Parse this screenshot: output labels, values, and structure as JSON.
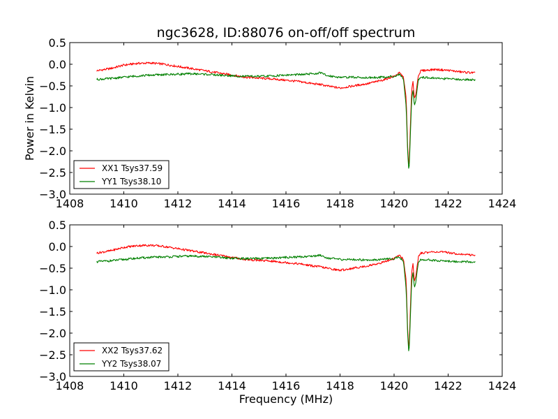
{
  "figure": {
    "title": "ngc3628, ID:88076 on-off/off spectrum"
  },
  "chart_data": [
    {
      "type": "line",
      "title": "ngc3628, ID:88076 on-off/off spectrum",
      "xlabel": "",
      "ylabel": "Power in Kelvin",
      "xlim": [
        1408,
        1424
      ],
      "ylim": [
        -3.0,
        0.5
      ],
      "xticks": [
        "1408",
        "1410",
        "1412",
        "1414",
        "1416",
        "1418",
        "1420",
        "1422",
        "1424"
      ],
      "yticks": [
        "0.5",
        "0.0",
        "−0.5",
        "−1.0",
        "−1.5",
        "−2.0",
        "−2.5",
        "−3.0"
      ],
      "grid": false,
      "legend_position": "lower-left",
      "x": [
        1409.0,
        1409.5,
        1410.0,
        1410.5,
        1411.0,
        1411.5,
        1412.0,
        1412.5,
        1413.0,
        1413.5,
        1414.0,
        1414.5,
        1415.0,
        1415.5,
        1416.0,
        1416.5,
        1417.0,
        1417.3,
        1417.5,
        1418.0,
        1418.5,
        1419.0,
        1419.5,
        1420.0,
        1420.2,
        1420.35,
        1420.45,
        1420.5,
        1420.55,
        1420.6,
        1420.65,
        1420.7,
        1420.75,
        1420.8,
        1420.9,
        1421.0,
        1421.5,
        1422.0,
        1422.5,
        1423.0
      ],
      "series": [
        {
          "name": "XX1 Tsys37.59",
          "color": "#ff0000",
          "values": [
            -0.15,
            -0.1,
            -0.02,
            0.02,
            0.03,
            0.0,
            -0.05,
            -0.1,
            -0.15,
            -0.2,
            -0.25,
            -0.3,
            -0.32,
            -0.34,
            -0.37,
            -0.4,
            -0.45,
            -0.47,
            -0.5,
            -0.55,
            -0.5,
            -0.45,
            -0.38,
            -0.28,
            -0.2,
            -0.3,
            -0.8,
            -1.9,
            -2.4,
            -1.5,
            -0.6,
            -0.4,
            -0.8,
            -0.7,
            -0.25,
            -0.15,
            -0.12,
            -0.14,
            -0.18,
            -0.2
          ]
        },
        {
          "name": "YY1 Tsys38.10",
          "color": "#008000",
          "values": [
            -0.35,
            -0.33,
            -0.3,
            -0.27,
            -0.25,
            -0.24,
            -0.23,
            -0.22,
            -0.23,
            -0.25,
            -0.27,
            -0.28,
            -0.28,
            -0.27,
            -0.25,
            -0.24,
            -0.22,
            -0.2,
            -0.26,
            -0.3,
            -0.3,
            -0.31,
            -0.3,
            -0.28,
            -0.24,
            -0.35,
            -1.0,
            -2.0,
            -2.5,
            -1.7,
            -0.8,
            -0.6,
            -0.95,
            -0.85,
            -0.35,
            -0.3,
            -0.32,
            -0.34,
            -0.35,
            -0.36
          ]
        }
      ]
    },
    {
      "type": "line",
      "title": "",
      "xlabel": "Frequency (MHz)",
      "ylabel": "",
      "xlim": [
        1408,
        1424
      ],
      "ylim": [
        -3.0,
        0.5
      ],
      "xticks": [
        "1408",
        "1410",
        "1412",
        "1414",
        "1416",
        "1418",
        "1420",
        "1422",
        "1424"
      ],
      "yticks": [
        "0.5",
        "0.0",
        "−0.5",
        "−1.0",
        "−1.5",
        "−2.0",
        "−2.5",
        "−3.0"
      ],
      "grid": false,
      "legend_position": "lower-left",
      "x": [
        1409.0,
        1409.5,
        1410.0,
        1410.5,
        1411.0,
        1411.5,
        1412.0,
        1412.5,
        1413.0,
        1413.5,
        1414.0,
        1414.5,
        1415.0,
        1415.5,
        1416.0,
        1416.5,
        1417.0,
        1417.3,
        1417.5,
        1418.0,
        1418.5,
        1419.0,
        1419.5,
        1420.0,
        1420.2,
        1420.35,
        1420.45,
        1420.5,
        1420.55,
        1420.6,
        1420.65,
        1420.7,
        1420.75,
        1420.8,
        1420.9,
        1421.0,
        1421.5,
        1422.0,
        1422.5,
        1423.0
      ],
      "series": [
        {
          "name": "XX2 Tsys37.62",
          "color": "#ff0000",
          "values": [
            -0.15,
            -0.1,
            -0.02,
            0.02,
            0.03,
            0.0,
            -0.05,
            -0.1,
            -0.15,
            -0.2,
            -0.25,
            -0.3,
            -0.32,
            -0.34,
            -0.37,
            -0.4,
            -0.45,
            -0.47,
            -0.5,
            -0.55,
            -0.5,
            -0.45,
            -0.38,
            -0.28,
            -0.2,
            -0.3,
            -0.8,
            -1.9,
            -2.4,
            -1.5,
            -0.6,
            -0.4,
            -0.8,
            -0.7,
            -0.25,
            -0.15,
            -0.12,
            -0.14,
            -0.18,
            -0.2
          ]
        },
        {
          "name": "YY2 Tsys38.07",
          "color": "#008000",
          "values": [
            -0.35,
            -0.33,
            -0.3,
            -0.27,
            -0.25,
            -0.24,
            -0.23,
            -0.22,
            -0.23,
            -0.25,
            -0.27,
            -0.28,
            -0.28,
            -0.27,
            -0.25,
            -0.24,
            -0.22,
            -0.2,
            -0.26,
            -0.3,
            -0.3,
            -0.31,
            -0.3,
            -0.28,
            -0.24,
            -0.35,
            -1.0,
            -2.0,
            -2.5,
            -1.7,
            -0.8,
            -0.6,
            -0.95,
            -0.85,
            -0.35,
            -0.3,
            -0.32,
            -0.34,
            -0.35,
            -0.36
          ]
        }
      ]
    }
  ]
}
